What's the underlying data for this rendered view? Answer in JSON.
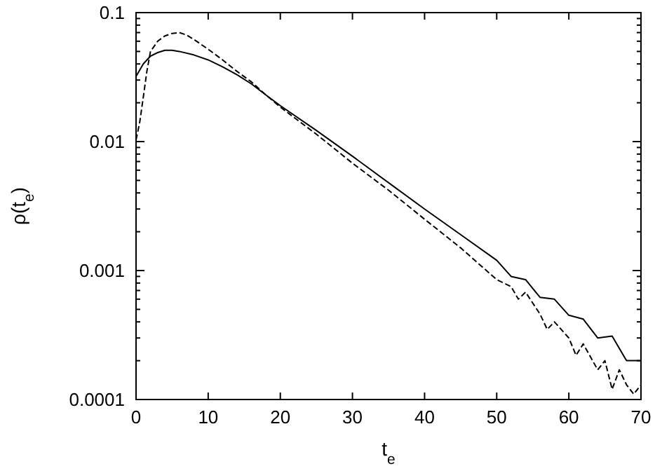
{
  "chart_data": {
    "type": "line",
    "xlabel": "t$_{e}$",
    "ylabel": "ρ(t$_{e}$)",
    "log": "y",
    "grid": false,
    "xlim": [
      0,
      70
    ],
    "xticks": [
      0,
      10,
      20,
      30,
      40,
      50,
      60,
      70
    ],
    "ylim": [
      0.0001,
      0.1
    ],
    "yticks": [
      0.0001,
      {
        "value": 0.0002,
        "label": null
      },
      {
        "value": 0.0003,
        "label": null
      },
      {
        "value": 0.0004,
        "label": null
      },
      {
        "value": 0.0005,
        "label": null
      },
      {
        "value": 0.0006,
        "label": null
      },
      {
        "value": 0.0007,
        "label": null
      },
      {
        "value": 0.0008,
        "label": null
      },
      {
        "value": 0.0009,
        "label": null
      },
      0.001,
      {
        "value": 0.002,
        "label": null
      },
      {
        "value": 0.003,
        "label": null
      },
      {
        "value": 0.004,
        "label": null
      },
      {
        "value": 0.005,
        "label": null
      },
      {
        "value": 0.006,
        "label": null
      },
      {
        "value": 0.007,
        "label": null
      },
      {
        "value": 0.008,
        "label": null
      },
      {
        "value": 0.009,
        "label": null
      },
      0.01,
      {
        "value": 0.02,
        "label": null
      },
      {
        "value": 0.03,
        "label": null
      },
      {
        "value": 0.04,
        "label": null
      },
      {
        "value": 0.05,
        "label": null
      },
      {
        "value": 0.06,
        "label": null
      },
      {
        "value": 0.07,
        "label": null
      },
      {
        "value": 0.08,
        "label": null
      },
      {
        "value": 0.09,
        "label": null
      },
      0.1
    ],
    "series": [
      {
        "color": "#000000",
        "line_style": "solid",
        "x": [
          0,
          1,
          2,
          3,
          4,
          5,
          6,
          8,
          10,
          12,
          14,
          16,
          18,
          20,
          25,
          30,
          35,
          40,
          45,
          50,
          52,
          54,
          56,
          58,
          60,
          62,
          64,
          66,
          68,
          70
        ],
        "values": [
          0.032,
          0.04,
          0.046,
          0.049,
          0.051,
          0.051,
          0.05,
          0.047,
          0.043,
          0.038,
          0.033,
          0.028,
          0.023,
          0.019,
          0.0122,
          0.0077,
          0.0048,
          0.003,
          0.0019,
          0.0012,
          0.0009,
          0.00085,
          0.00062,
          0.0006,
          0.00045,
          0.00042,
          0.0003,
          0.00031,
          0.0002,
          0.0002
        ]
      },
      {
        "color": "#000000",
        "line_style": "dashed",
        "x": [
          0,
          0.5,
          1,
          1.5,
          2,
          3,
          4,
          5,
          6,
          7,
          8,
          10,
          12,
          14,
          16,
          18,
          20,
          25,
          30,
          35,
          40,
          45,
          50,
          52,
          53,
          54,
          56,
          57,
          58,
          60,
          61,
          62,
          64,
          65,
          66,
          67,
          68,
          69,
          70
        ],
        "values": [
          0.0103,
          0.014,
          0.022,
          0.035,
          0.05,
          0.06,
          0.066,
          0.069,
          0.07,
          0.067,
          0.062,
          0.052,
          0.043,
          0.035,
          0.029,
          0.023,
          0.0185,
          0.0114,
          0.0068,
          0.0042,
          0.0025,
          0.0015,
          0.00085,
          0.00075,
          0.0006,
          0.00068,
          0.00046,
          0.00035,
          0.0004,
          0.0003,
          0.00022,
          0.00027,
          0.00017,
          0.0002,
          0.00012,
          0.00017,
          0.00013,
          0.00011,
          0.00013
        ]
      }
    ]
  }
}
